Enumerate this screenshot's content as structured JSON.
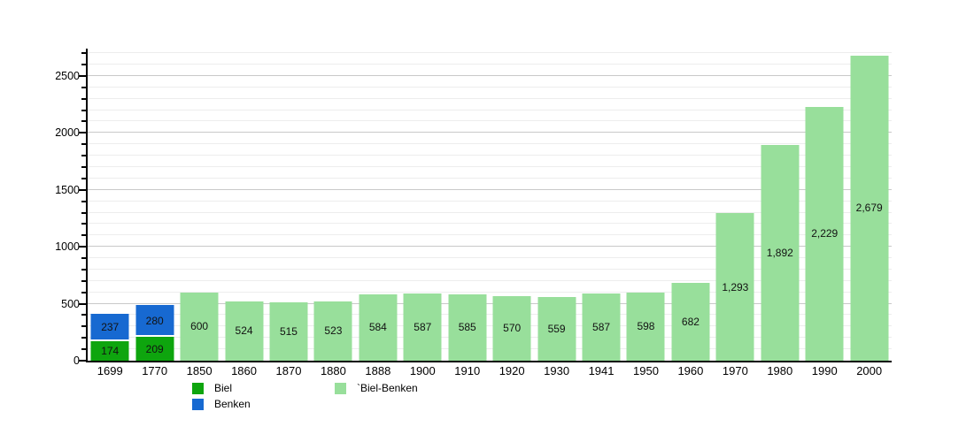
{
  "chart_data": {
    "type": "bar",
    "stacked": true,
    "title": "",
    "xlabel": "",
    "ylabel": "",
    "categories": [
      "1699",
      "1770",
      "1850",
      "1860",
      "1870",
      "1880",
      "1888",
      "1900",
      "1910",
      "1920",
      "1930",
      "1941",
      "1950",
      "1960",
      "1970",
      "1980",
      "1990",
      "2000"
    ],
    "series": [
      {
        "name": "Biel",
        "color": "#0EA50E",
        "values": [
          174,
          209,
          null,
          null,
          null,
          null,
          null,
          null,
          null,
          null,
          null,
          null,
          null,
          null,
          null,
          null,
          null,
          null
        ]
      },
      {
        "name": "Benken",
        "color": "#1769D1",
        "values": [
          237,
          280,
          null,
          null,
          null,
          null,
          null,
          null,
          null,
          null,
          null,
          null,
          null,
          null,
          null,
          null,
          null,
          null
        ]
      },
      {
        "name": "Biel-Benken",
        "color": "#98DF9B",
        "values": [
          null,
          null,
          600,
          524,
          515,
          523,
          584,
          587,
          585,
          570,
          559,
          587,
          598,
          682,
          1293,
          1892,
          2229,
          2679
        ]
      }
    ],
    "ylim": [
      0,
      2740
    ],
    "y_major_step": 500,
    "y_minor_step": 100,
    "y_tick_labels": [
      "0",
      "500",
      "1000",
      "1500",
      "2000",
      "2500"
    ],
    "grid": true,
    "value_labels": "inside-center, thousands separated with comma",
    "legend": {
      "position": "bottom",
      "entries": [
        {
          "label": "Biel",
          "color": "#0EA50E"
        },
        {
          "label": "Benken",
          "color": "#1769D1"
        },
        {
          "label": "`Biel-Benken",
          "color": "#98DF9B"
        }
      ]
    }
  }
}
